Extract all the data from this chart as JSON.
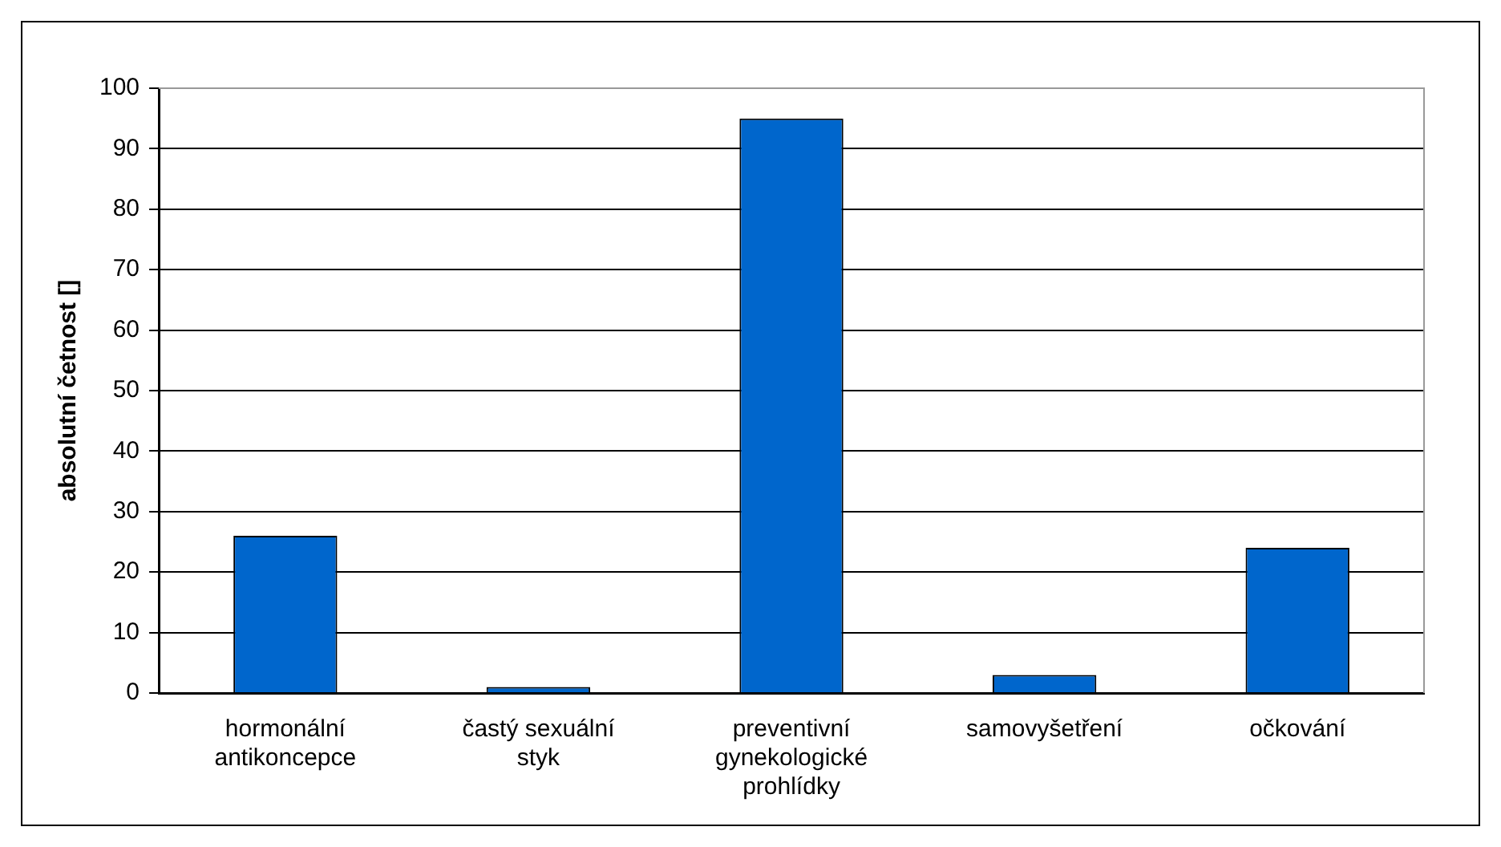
{
  "chart_data": {
    "type": "bar",
    "ylabel": "absolutní četnost []",
    "categories": [
      "hormonální antikoncepce",
      "častý sexuální styk",
      "preventivní gynekologické prohlídky",
      "samovyšetření",
      "očkování"
    ],
    "values": [
      26,
      1,
      95,
      3,
      24
    ],
    "color": "#0066cc",
    "ylim": [
      0,
      100
    ],
    "yticks": [
      0,
      10,
      20,
      30,
      40,
      50,
      60,
      70,
      80,
      90,
      100
    ],
    "grid": "y",
    "legend": false
  }
}
